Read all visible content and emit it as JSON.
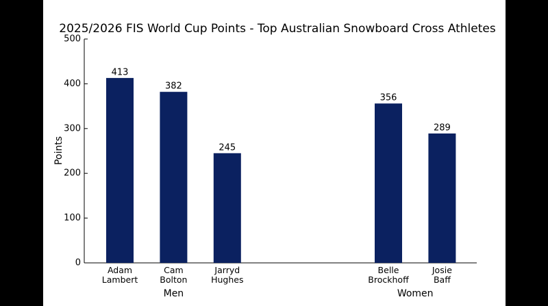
{
  "chart_data": {
    "type": "bar",
    "title": "2025/2026 FIS World Cup Points - Top Australian Snowboard Cross Athletes",
    "y_label": "Points",
    "categories": [
      "Adam\nLambert",
      "Cam\nBolton",
      "Jarryd\nHughes",
      null,
      null,
      "Belle\nBrockhoff",
      "Josie\nBaff"
    ],
    "values": [
      413,
      382,
      245,
      null,
      null,
      356,
      289
    ],
    "groups": [
      "Men",
      "Women"
    ],
    "color": "#0b2160",
    "ylim": [
      0,
      500
    ],
    "yticks": [
      0,
      100,
      200,
      300,
      400,
      500
    ],
    "grid": false
  }
}
